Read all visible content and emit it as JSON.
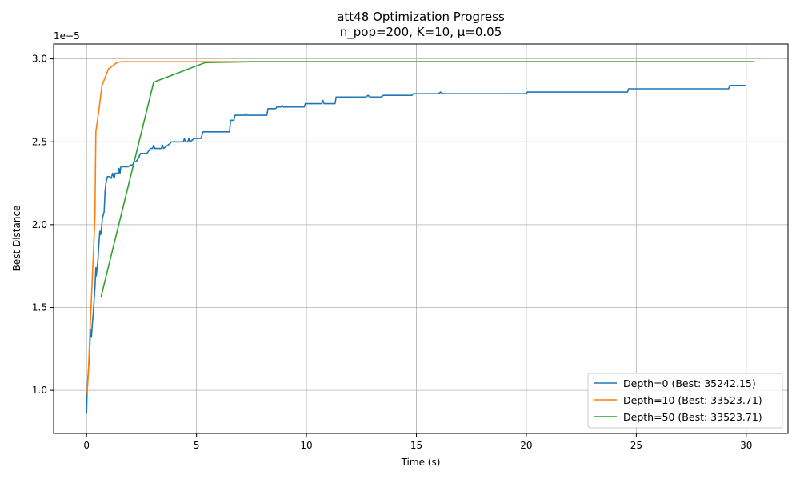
{
  "chart_data": {
    "type": "line",
    "title": "att48 Optimization Progress",
    "subtitle": "n_pop=200, K=10, μ=0.05",
    "xlabel": "Time (s)",
    "ylabel": "Best Distance",
    "y_offset_label": "1e−5",
    "xlim": [
      -1.5,
      31.9
    ],
    "ylim": [
      0.74,
      3.09
    ],
    "xticks": [
      0,
      5,
      10,
      15,
      20,
      25,
      30
    ],
    "xtick_labels": [
      "0",
      "5",
      "10",
      "15",
      "20",
      "25",
      "30"
    ],
    "yticks": [
      1.0,
      1.5,
      2.0,
      2.5,
      3.0
    ],
    "ytick_labels": [
      "1.0",
      "1.5",
      "2.0",
      "2.5",
      "3.0"
    ],
    "grid": true,
    "legend_position": "bottom-right",
    "series": [
      {
        "name": "Depth=0 (Best: 35242.15)",
        "color": "#1f77b4",
        "points": [
          [
            0.0,
            0.86
          ],
          [
            0.02,
            0.98
          ],
          [
            0.06,
            1.08
          ],
          [
            0.1,
            1.15
          ],
          [
            0.14,
            1.25
          ],
          [
            0.18,
            1.37
          ],
          [
            0.22,
            1.32
          ],
          [
            0.26,
            1.4
          ],
          [
            0.3,
            1.46
          ],
          [
            0.34,
            1.54
          ],
          [
            0.38,
            1.62
          ],
          [
            0.42,
            1.74
          ],
          [
            0.44,
            1.69
          ],
          [
            0.48,
            1.74
          ],
          [
            0.52,
            1.79
          ],
          [
            0.56,
            1.88
          ],
          [
            0.6,
            1.96
          ],
          [
            0.64,
            1.94
          ],
          [
            0.68,
            1.98
          ],
          [
            0.72,
            2.04
          ],
          [
            0.76,
            2.06
          ],
          [
            0.8,
            2.08
          ],
          [
            0.84,
            2.2
          ],
          [
            0.88,
            2.25
          ],
          [
            0.95,
            2.29
          ],
          [
            1.05,
            2.29
          ],
          [
            1.12,
            2.28
          ],
          [
            1.18,
            2.31
          ],
          [
            1.25,
            2.28
          ],
          [
            1.3,
            2.31
          ],
          [
            1.45,
            2.31
          ],
          [
            1.48,
            2.34
          ],
          [
            1.52,
            2.31
          ],
          [
            1.56,
            2.35
          ],
          [
            1.9,
            2.35
          ],
          [
            2.0,
            2.36
          ],
          [
            2.1,
            2.36
          ],
          [
            2.15,
            2.38
          ],
          [
            2.25,
            2.38
          ],
          [
            2.35,
            2.4
          ],
          [
            2.45,
            2.43
          ],
          [
            2.6,
            2.43
          ],
          [
            2.75,
            2.43
          ],
          [
            2.8,
            2.44
          ],
          [
            2.9,
            2.46
          ],
          [
            3.0,
            2.46
          ],
          [
            3.05,
            2.48
          ],
          [
            3.1,
            2.46
          ],
          [
            3.4,
            2.46
          ],
          [
            3.45,
            2.48
          ],
          [
            3.5,
            2.46
          ],
          [
            3.6,
            2.47
          ],
          [
            3.7,
            2.48
          ],
          [
            3.8,
            2.49
          ],
          [
            3.85,
            2.5
          ],
          [
            4.4,
            2.5
          ],
          [
            4.45,
            2.52
          ],
          [
            4.5,
            2.5
          ],
          [
            4.6,
            2.5
          ],
          [
            4.65,
            2.52
          ],
          [
            4.7,
            2.5
          ],
          [
            4.8,
            2.51
          ],
          [
            4.9,
            2.52
          ],
          [
            5.2,
            2.52
          ],
          [
            5.3,
            2.56
          ],
          [
            6.5,
            2.56
          ],
          [
            6.55,
            2.63
          ],
          [
            6.7,
            2.63
          ],
          [
            6.75,
            2.66
          ],
          [
            7.2,
            2.66
          ],
          [
            7.25,
            2.67
          ],
          [
            7.3,
            2.66
          ],
          [
            8.2,
            2.66
          ],
          [
            8.25,
            2.7
          ],
          [
            8.6,
            2.7
          ],
          [
            8.65,
            2.71
          ],
          [
            8.85,
            2.71
          ],
          [
            8.9,
            2.72
          ],
          [
            8.95,
            2.71
          ],
          [
            9.9,
            2.71
          ],
          [
            9.95,
            2.73
          ],
          [
            10.7,
            2.73
          ],
          [
            10.75,
            2.75
          ],
          [
            10.8,
            2.73
          ],
          [
            11.3,
            2.73
          ],
          [
            11.35,
            2.77
          ],
          [
            12.7,
            2.77
          ],
          [
            12.8,
            2.78
          ],
          [
            12.9,
            2.77
          ],
          [
            13.4,
            2.77
          ],
          [
            13.5,
            2.78
          ],
          [
            14.8,
            2.78
          ],
          [
            14.85,
            2.79
          ],
          [
            16.0,
            2.79
          ],
          [
            16.1,
            2.8
          ],
          [
            16.2,
            2.79
          ],
          [
            20.0,
            2.79
          ],
          [
            20.05,
            2.8
          ],
          [
            24.6,
            2.8
          ],
          [
            24.65,
            2.82
          ],
          [
            29.2,
            2.82
          ],
          [
            29.25,
            2.84
          ],
          [
            30.0,
            2.84
          ]
        ]
      },
      {
        "name": "Depth=10 (Best: 33523.71)",
        "color": "#ff7f0e",
        "points": [
          [
            0.02,
            0.98
          ],
          [
            0.08,
            1.1
          ],
          [
            0.15,
            1.35
          ],
          [
            0.22,
            1.56
          ],
          [
            0.3,
            1.8
          ],
          [
            0.38,
            2.05
          ],
          [
            0.42,
            2.56
          ],
          [
            0.55,
            2.68
          ],
          [
            0.7,
            2.84
          ],
          [
            1.0,
            2.94
          ],
          [
            1.4,
            2.98
          ],
          [
            1.6,
            2.983
          ],
          [
            3.0,
            2.983
          ],
          [
            10.0,
            2.983
          ],
          [
            20.0,
            2.983
          ],
          [
            30.4,
            2.983
          ]
        ]
      },
      {
        "name": "Depth=50 (Best: 33523.71)",
        "color": "#2ca02c",
        "points": [
          [
            0.65,
            1.56
          ],
          [
            3.05,
            2.86
          ],
          [
            5.4,
            2.978
          ],
          [
            7.5,
            2.983
          ],
          [
            15.0,
            2.983
          ],
          [
            25.0,
            2.983
          ],
          [
            30.3,
            2.983
          ]
        ]
      }
    ]
  }
}
